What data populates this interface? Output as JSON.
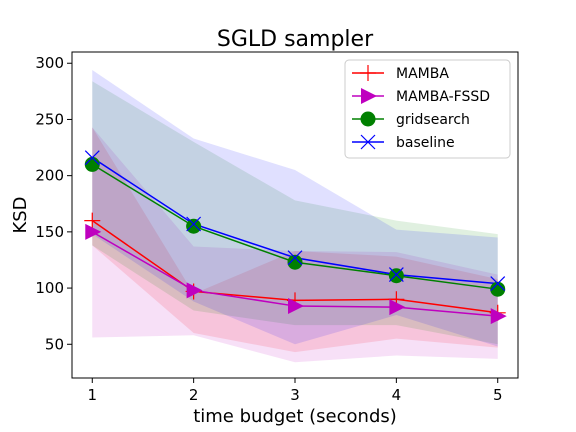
{
  "chart_data": {
    "type": "line",
    "title": "SGLD sampler",
    "xlabel": "time budget (seconds)",
    "ylabel": "KSD",
    "x": [
      1,
      2,
      3,
      4,
      5
    ],
    "xlim": [
      0.8,
      5.2
    ],
    "ylim": [
      20,
      310
    ],
    "xticks": [
      1,
      2,
      3,
      4,
      5
    ],
    "yticks": [
      50,
      100,
      150,
      200,
      250,
      300
    ],
    "grid": false,
    "legend_position": "top-right",
    "series": [
      {
        "name": "MAMBA",
        "color": "#ff0000",
        "marker": "plus",
        "values": [
          160,
          97,
          89,
          90,
          78
        ],
        "band_lower": [
          138,
          60,
          43,
          55,
          47
        ],
        "band_upper": [
          243,
          95,
          133,
          128,
          108
        ]
      },
      {
        "name": "MAMBA-FSSD",
        "color": "#bf00bf",
        "marker": "triangle-right",
        "values": [
          150,
          98,
          84,
          83,
          75
        ],
        "band_lower": [
          56,
          58,
          34,
          40,
          37
        ],
        "band_upper": [
          243,
          137,
          133,
          132,
          112
        ]
      },
      {
        "name": "gridsearch",
        "color": "#008000",
        "marker": "circle",
        "values": [
          210,
          155,
          123,
          111,
          99
        ],
        "band_lower": [
          138,
          80,
          67,
          67,
          50
        ],
        "band_upper": [
          284,
          230,
          178,
          160,
          148
        ]
      },
      {
        "name": "baseline",
        "color": "#0000ff",
        "marker": "x",
        "values": [
          216,
          157,
          127,
          112,
          104
        ],
        "band_lower": [
          148,
          88,
          50,
          76,
          48
        ],
        "band_upper": [
          294,
          233,
          205,
          152,
          145
        ]
      }
    ]
  }
}
